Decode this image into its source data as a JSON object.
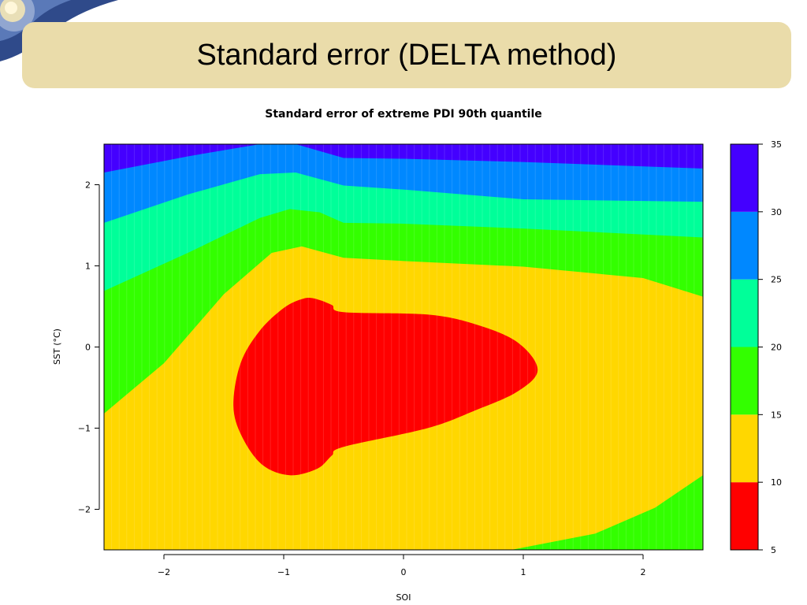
{
  "slide": {
    "title": "Standard error (DELTA method)"
  },
  "chart_data": {
    "type": "heatmap",
    "title": "Standard error of extreme PDI 90th quantile",
    "xlabel": "SOI",
    "ylabel": "SST (°C)",
    "xlim": [
      -2.5,
      2.5
    ],
    "ylim": [
      -2.5,
      2.5
    ],
    "x_ticks": [
      "−2",
      "−1",
      "0",
      "1",
      "2"
    ],
    "x_tick_values": [
      -2,
      -1,
      0,
      1,
      2
    ],
    "y_ticks": [
      "−2",
      "−1",
      "0",
      "1",
      "2"
    ],
    "y_tick_values": [
      -2,
      -1,
      0,
      1,
      2
    ],
    "legend": {
      "placement": "right",
      "levels": [
        5,
        10,
        15,
        20,
        25,
        30,
        35
      ],
      "labels": [
        "5",
        "10",
        "15",
        "20",
        "25",
        "30",
        "35"
      ],
      "colors": [
        "#ff0000",
        "#ffd700",
        "#33ff00",
        "#00ff99",
        "#0088ff",
        "#4400ff"
      ]
    },
    "contour_boundaries": [
      {
        "level": 30,
        "points": [
          [
            -2.5,
            2.15
          ],
          [
            -1.8,
            2.35
          ],
          [
            -1.2,
            2.5
          ],
          [
            -0.9,
            2.5
          ],
          [
            -0.5,
            2.33
          ],
          [
            0,
            2.32
          ],
          [
            1,
            2.28
          ],
          [
            2.5,
            2.2
          ]
        ]
      },
      {
        "level": 25,
        "points": [
          [
            -2.5,
            1.53
          ],
          [
            -1.8,
            1.88
          ],
          [
            -1.2,
            2.13
          ],
          [
            -0.9,
            2.15
          ],
          [
            -0.5,
            1.99
          ],
          [
            0,
            1.94
          ],
          [
            1,
            1.82
          ],
          [
            2.5,
            1.79
          ]
        ]
      },
      {
        "level": 20,
        "points": [
          [
            -2.5,
            0.69
          ],
          [
            -1.8,
            1.16
          ],
          [
            -1.2,
            1.59
          ],
          [
            -0.95,
            1.7
          ],
          [
            -0.7,
            1.66
          ],
          [
            -0.5,
            1.53
          ],
          [
            0,
            1.52
          ],
          [
            1,
            1.46
          ],
          [
            2.5,
            1.35
          ]
        ]
      },
      {
        "level": 15,
        "points": [
          [
            -2.5,
            -0.82
          ],
          [
            -2,
            -0.2
          ],
          [
            -1.5,
            0.65
          ],
          [
            -1.1,
            1.16
          ],
          [
            -0.85,
            1.24
          ],
          [
            -0.6,
            1.14
          ],
          [
            -0.5,
            1.1
          ],
          [
            0,
            1.06
          ],
          [
            1,
            0.99
          ],
          [
            2.0,
            0.85
          ],
          [
            2.5,
            0.62
          ]
        ]
      },
      {
        "level": 10,
        "points_bottom": [
          [
            0.9,
            -2.5
          ],
          [
            1.6,
            -2.3
          ],
          [
            2.1,
            -1.98
          ],
          [
            2.5,
            -1.58
          ]
        ]
      }
    ],
    "minimum_region": {
      "level": 10,
      "approx_center": [
        -0.4,
        -0.3
      ],
      "x_range": [
        -1.42,
        1.12
      ],
      "y_range": [
        -1.58,
        0.61
      ]
    }
  }
}
